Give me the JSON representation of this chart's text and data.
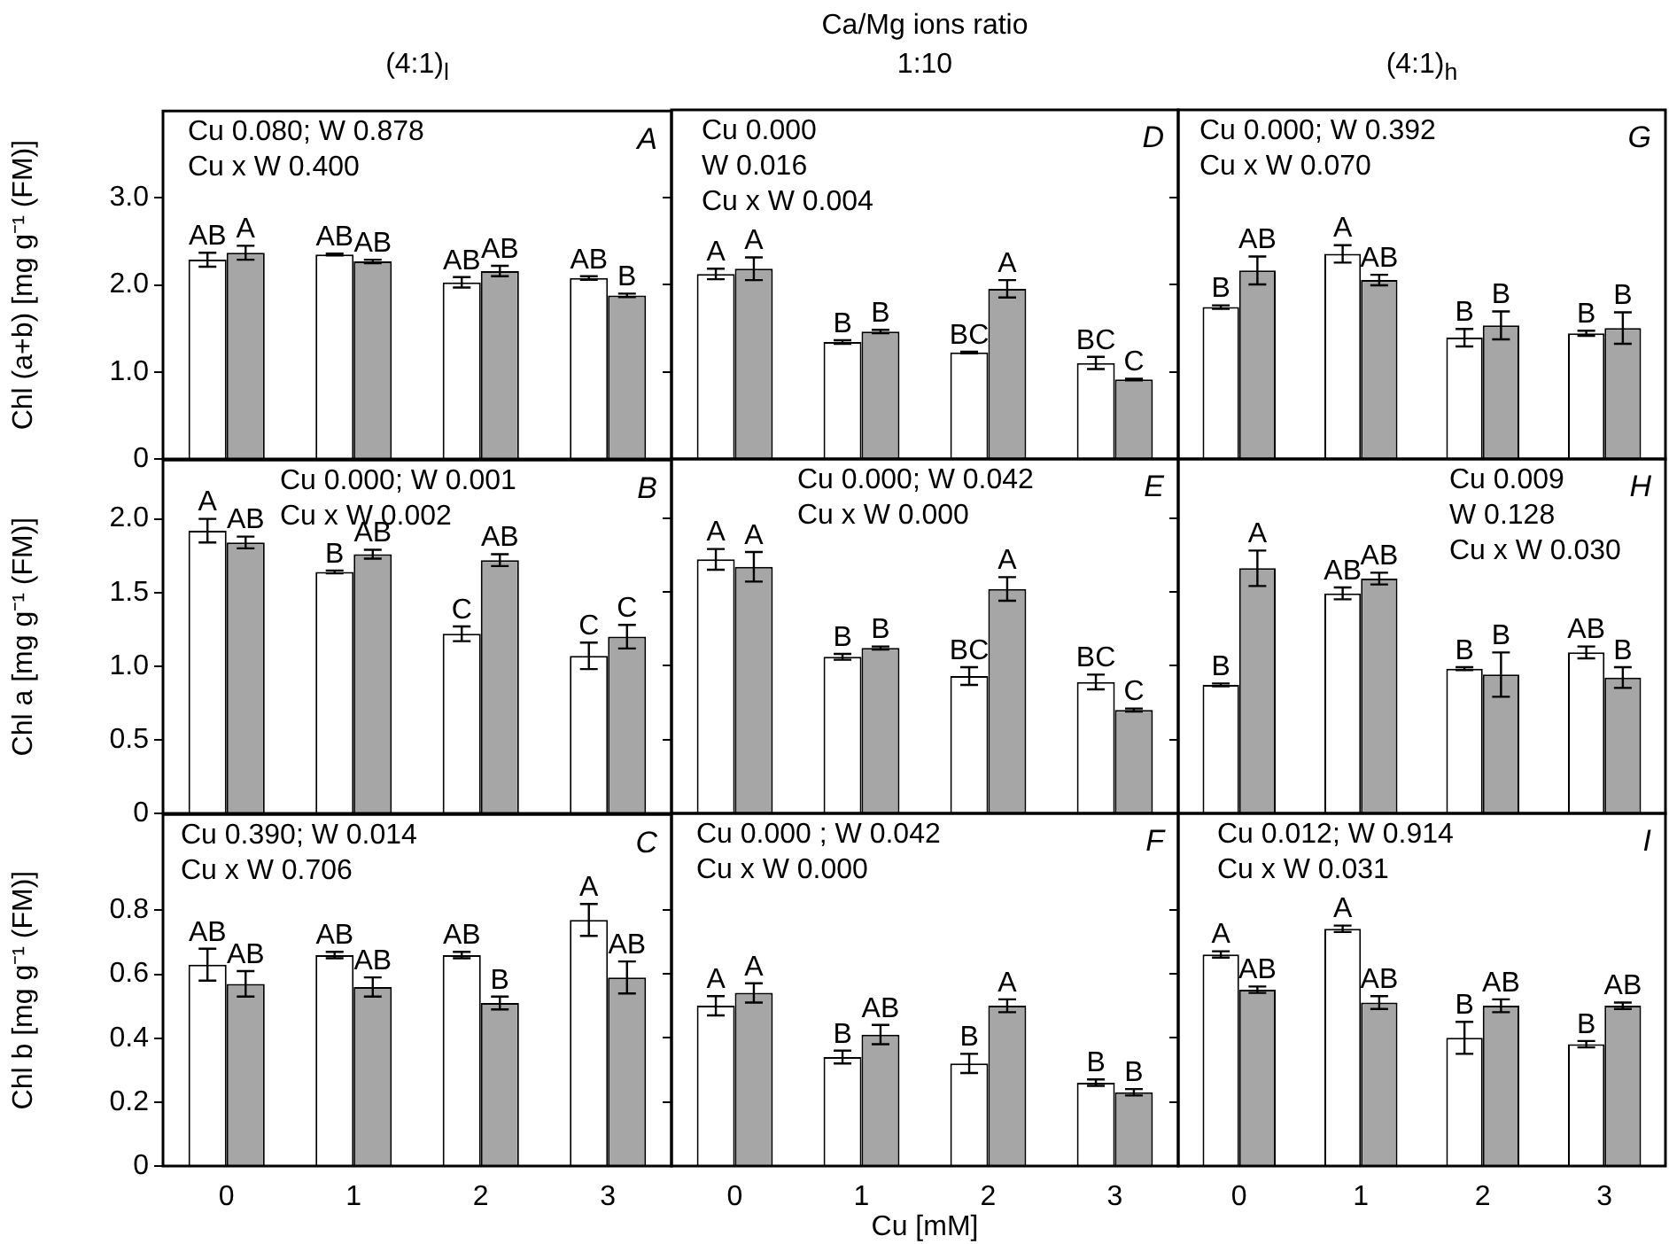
{
  "chart_data": [
    {
      "type": "bar",
      "title": "(4:1)$_{l}$",
      "ylabel": "Chl (a+b) [mg g⁻¹ (FM)]",
      "categories": [
        "0",
        "1",
        "2",
        "3"
      ],
      "ylim": [
        0,
        4
      ],
      "yticks": [
        {
          "value": 0,
          "label": "0"
        },
        {
          "value": 1,
          "label": "1.0"
        },
        {
          "value": 2,
          "label": "2.0"
        },
        {
          "value": 3,
          "label": "3.0"
        }
      ],
      "tick_labels": "y",
      "annotations": [
        "Cu 0.080; W 0.878",
        "Cu x W 0.400",
        "A"
      ],
      "series": [
        {
          "color": "#ffffff",
          "values": [
            2.29,
            2.35,
            2.03,
            2.08
          ],
          "errors": [
            0.08,
            0.01,
            0.06,
            0.02
          ],
          "value_labels": [
            "AB",
            "AB",
            "AB",
            "AB"
          ]
        },
        {
          "color": "#a6a6a6",
          "values": [
            2.37,
            2.27,
            2.16,
            1.88
          ],
          "errors": [
            0.08,
            0.02,
            0.06,
            0.02
          ],
          "value_labels": [
            "A",
            "AB",
            "AB",
            "B"
          ]
        }
      ]
    },
    {
      "type": "bar",
      "title": "Ca/Mg ions ratio",
      "subtitle": "1:10",
      "categories": [
        "0",
        "1",
        "2",
        "3"
      ],
      "ylim": [
        0,
        4
      ],
      "yticks": [
        {
          "value": 0,
          "label": null
        },
        {
          "value": 1,
          "label": null
        },
        {
          "value": 2,
          "label": null
        },
        {
          "value": 3,
          "label": null
        }
      ],
      "tick_labels": false,
      "annotations": [
        "Cu 0.000",
        "W 0.016",
        "Cu x W 0.004",
        "D"
      ],
      "series": [
        {
          "color": "#ffffff",
          "values": [
            2.12,
            1.34,
            1.22,
            1.1
          ],
          "errors": [
            0.06,
            0.02,
            0.01,
            0.07
          ],
          "value_labels": [
            "A",
            "B",
            "BC",
            "BC"
          ]
        },
        {
          "color": "#a6a6a6",
          "values": [
            2.18,
            1.46,
            1.95,
            0.91
          ],
          "errors": [
            0.13,
            0.02,
            0.1,
            0.01
          ],
          "value_labels": [
            "A",
            "B",
            "A",
            "C"
          ]
        }
      ]
    },
    {
      "type": "bar",
      "title": "(4:1)$_{h}$",
      "categories": [
        "0",
        "1",
        "2",
        "3"
      ],
      "ylim": [
        0,
        4
      ],
      "yticks": [
        {
          "value": 0,
          "label": null
        },
        {
          "value": 1,
          "label": null
        },
        {
          "value": 2,
          "label": null
        },
        {
          "value": 3,
          "label": null
        }
      ],
      "tick_labels": false,
      "annotations": [
        "Cu 0.000; W 0.392",
        "Cu x W 0.070",
        "G"
      ],
      "series": [
        {
          "color": "#ffffff",
          "values": [
            1.74,
            2.35,
            1.39,
            1.44
          ],
          "errors": [
            0.02,
            0.1,
            0.1,
            0.03
          ],
          "value_labels": [
            "B",
            "A",
            "B",
            "B"
          ]
        },
        {
          "color": "#a6a6a6",
          "values": [
            2.16,
            2.05,
            1.53,
            1.5
          ],
          "errors": [
            0.16,
            0.06,
            0.16,
            0.18
          ],
          "value_labels": [
            "AB",
            "AB",
            "B",
            "B"
          ]
        }
      ]
    },
    {
      "type": "bar",
      "ylabel": "Chl a [mg g⁻¹ (FM)]",
      "categories": [
        "0",
        "1",
        "2",
        "3"
      ],
      "ylim": [
        0,
        2.4
      ],
      "yticks": [
        {
          "value": 0,
          "label": "0"
        },
        {
          "value": 0.5,
          "label": "0.5"
        },
        {
          "value": 1,
          "label": "1.0"
        },
        {
          "value": 1.5,
          "label": "1.5"
        },
        {
          "value": 2,
          "label": "2.0"
        }
      ],
      "tick_labels": "y",
      "annotations": [
        "Cu 0.000; W 0.001",
        "Cu x W 0.002",
        "B"
      ],
      "series": [
        {
          "color": "#ffffff",
          "values": [
            1.92,
            1.64,
            1.22,
            1.07
          ],
          "errors": [
            0.08,
            0.01,
            0.05,
            0.09
          ],
          "value_labels": [
            "A",
            "B",
            "C",
            "C"
          ]
        },
        {
          "color": "#a6a6a6",
          "values": [
            1.84,
            1.76,
            1.72,
            1.2
          ],
          "errors": [
            0.04,
            0.03,
            0.04,
            0.08
          ],
          "value_labels": [
            "AB",
            "AB",
            "AB",
            "C"
          ]
        }
      ]
    },
    {
      "type": "bar",
      "categories": [
        "0",
        "1",
        "2",
        "3"
      ],
      "ylim": [
        0,
        2.4
      ],
      "yticks": [
        {
          "value": 0,
          "label": null
        },
        {
          "value": 0.5,
          "label": null
        },
        {
          "value": 1,
          "label": null
        },
        {
          "value": 1.5,
          "label": null
        },
        {
          "value": 2,
          "label": null
        }
      ],
      "tick_labels": false,
      "annotations": [
        "Cu 0.000; W 0.042",
        "Cu x W 0.000",
        "E"
      ],
      "series": [
        {
          "color": "#ffffff",
          "values": [
            1.72,
            1.06,
            0.93,
            0.89
          ],
          "errors": [
            0.07,
            0.02,
            0.06,
            0.05
          ],
          "value_labels": [
            "A",
            "B",
            "BC",
            "BC"
          ]
        },
        {
          "color": "#a6a6a6",
          "values": [
            1.67,
            1.12,
            1.52,
            0.7
          ],
          "errors": [
            0.1,
            0.01,
            0.08,
            0.01
          ],
          "value_labels": [
            "A",
            "B",
            "A",
            "C"
          ]
        }
      ]
    },
    {
      "type": "bar",
      "categories": [
        "0",
        "1",
        "2",
        "3"
      ],
      "ylim": [
        0,
        2.4
      ],
      "yticks": [
        {
          "value": 0,
          "label": null
        },
        {
          "value": 0.5,
          "label": null
        },
        {
          "value": 1,
          "label": null
        },
        {
          "value": 1.5,
          "label": null
        },
        {
          "value": 2,
          "label": null
        }
      ],
      "tick_labels": false,
      "annotations": [
        "Cu 0.009",
        "W 0.128",
        "Cu x W 0.030",
        "H"
      ],
      "series": [
        {
          "color": "#ffffff",
          "values": [
            0.87,
            1.49,
            0.98,
            1.09
          ],
          "errors": [
            0.01,
            0.04,
            0.01,
            0.04
          ],
          "value_labels": [
            "B",
            "AB",
            "B",
            "AB"
          ]
        },
        {
          "color": "#a6a6a6",
          "values": [
            1.66,
            1.59,
            0.94,
            0.92
          ],
          "errors": [
            0.12,
            0.04,
            0.15,
            0.07
          ],
          "value_labels": [
            "A",
            "AB",
            "B",
            "B"
          ]
        }
      ]
    },
    {
      "type": "bar",
      "ylabel": "Chl b [mg g⁻¹ (FM)]",
      "categories": [
        "0",
        "1",
        "2",
        "3"
      ],
      "ylim": [
        0,
        1.1
      ],
      "yticks": [
        {
          "value": 0,
          "label": "0"
        },
        {
          "value": 0.2,
          "label": "0.2"
        },
        {
          "value": 0.4,
          "label": "0.4"
        },
        {
          "value": 0.6,
          "label": "0.6"
        },
        {
          "value": 0.8,
          "label": "0.8"
        }
      ],
      "annotations": [
        "Cu 0.390; W 0.014",
        "Cu x W 0.706",
        "C"
      ],
      "series": [
        {
          "color": "#ffffff",
          "values": [
            0.63,
            0.66,
            0.66,
            0.77
          ],
          "errors": [
            0.05,
            0.01,
            0.01,
            0.05
          ],
          "value_labels": [
            "AB",
            "AB",
            "AB",
            "A"
          ]
        },
        {
          "color": "#a6a6a6",
          "values": [
            0.57,
            0.56,
            0.51,
            0.59
          ],
          "errors": [
            0.04,
            0.03,
            0.02,
            0.05
          ],
          "value_labels": [
            "AB",
            "AB",
            "B",
            "AB"
          ]
        }
      ]
    },
    {
      "type": "bar",
      "xlabel": "Cu [mM]",
      "categories": [
        "0",
        "1",
        "2",
        "3"
      ],
      "ylim": [
        0,
        1.1
      ],
      "yticks": [
        {
          "value": 0,
          "label": null
        },
        {
          "value": 0.2,
          "label": null
        },
        {
          "value": 0.4,
          "label": null
        },
        {
          "value": 0.6,
          "label": null
        },
        {
          "value": 0.8,
          "label": null
        }
      ],
      "tick_labels": "x",
      "annotations": [
        "Cu 0.000 ; W 0.042",
        "Cu x W 0.000",
        "F"
      ],
      "series": [
        {
          "color": "#ffffff",
          "values": [
            0.5,
            0.34,
            0.32,
            0.26
          ],
          "errors": [
            0.03,
            0.02,
            0.03,
            0.01
          ],
          "value_labels": [
            "A",
            "B",
            "B",
            "B"
          ]
        },
        {
          "color": "#a6a6a6",
          "values": [
            0.54,
            0.41,
            0.5,
            0.23
          ],
          "errors": [
            0.03,
            0.03,
            0.02,
            0.01
          ],
          "value_labels": [
            "A",
            "AB",
            "A",
            "B"
          ]
        }
      ]
    },
    {
      "type": "bar",
      "categories": [
        "0",
        "1",
        "2",
        "3"
      ],
      "ylim": [
        0,
        1.1
      ],
      "yticks": [
        {
          "value": 0,
          "label": null
        },
        {
          "value": 0.2,
          "label": null
        },
        {
          "value": 0.4,
          "label": null
        },
        {
          "value": 0.6,
          "label": null
        },
        {
          "value": 0.8,
          "label": null
        }
      ],
      "tick_labels": "x",
      "annotations": [
        "Cu 0.012; W 0.914",
        "Cu x W 0.031",
        "I"
      ],
      "series": [
        {
          "color": "#ffffff",
          "values": [
            0.66,
            0.74,
            0.4,
            0.38
          ],
          "errors": [
            0.01,
            0.01,
            0.05,
            0.01
          ],
          "value_labels": [
            "A",
            "A",
            "B",
            "B"
          ]
        },
        {
          "color": "#a6a6a6",
          "values": [
            0.55,
            0.51,
            0.5,
            0.5
          ],
          "errors": [
            0.01,
            0.02,
            0.02,
            0.01
          ],
          "value_labels": [
            "AB",
            "AB",
            "AB",
            "AB"
          ]
        }
      ]
    }
  ]
}
